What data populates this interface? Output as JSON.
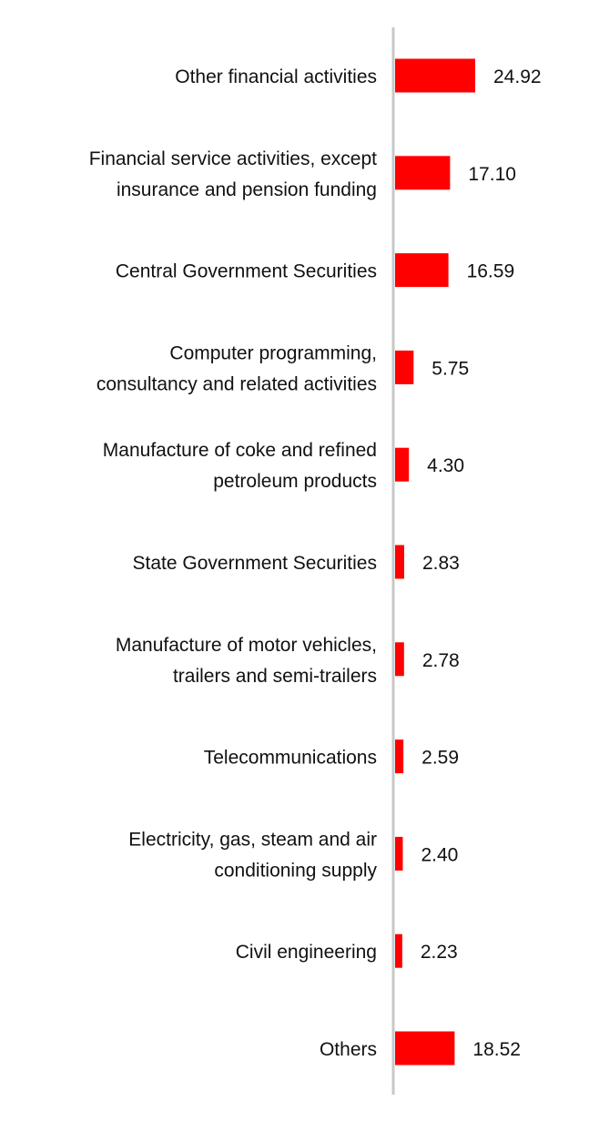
{
  "chart_data": {
    "type": "bar",
    "orientation": "horizontal",
    "title": "",
    "xlabel": "",
    "ylabel": "",
    "grid": false,
    "legend": "none",
    "bar_color": "#ff0000",
    "axis_color": "#c8c8c8",
    "categories": [
      "Other financial activities",
      "Financial service activities, except insurance and pension funding",
      "Central Government Securities",
      "Computer programming, consultancy and related activities",
      "Manufacture of coke and refined petroleum products",
      "State Government Securities",
      "Manufacture of motor vehicles, trailers and semi-trailers",
      "Telecommunications",
      "Electricity, gas, steam and air conditioning supply",
      "Civil engineering",
      "Others"
    ],
    "category_lines": [
      [
        "Other financial activities"
      ],
      [
        "Financial service activities, except",
        "insurance and pension funding"
      ],
      [
        "Central Government Securities"
      ],
      [
        "Computer programming,",
        "consultancy and related activities"
      ],
      [
        "Manufacture of coke and refined",
        "petroleum products"
      ],
      [
        "State Government Securities"
      ],
      [
        "Manufacture of motor vehicles,",
        "trailers and semi-trailers"
      ],
      [
        "Telecommunications"
      ],
      [
        "Electricity, gas, steam and air",
        "conditioning supply"
      ],
      [
        "Civil engineering"
      ],
      [
        "Others"
      ]
    ],
    "values": [
      24.92,
      17.1,
      16.59,
      5.75,
      4.3,
      2.83,
      2.78,
      2.59,
      2.4,
      2.23,
      18.52
    ],
    "value_labels": [
      "24.92",
      "17.10",
      "16.59",
      "5.75",
      "4.30",
      "2.83",
      "2.78",
      "2.59",
      "2.40",
      "2.23",
      "18.52"
    ],
    "xlim": [
      0,
      24.92
    ]
  }
}
